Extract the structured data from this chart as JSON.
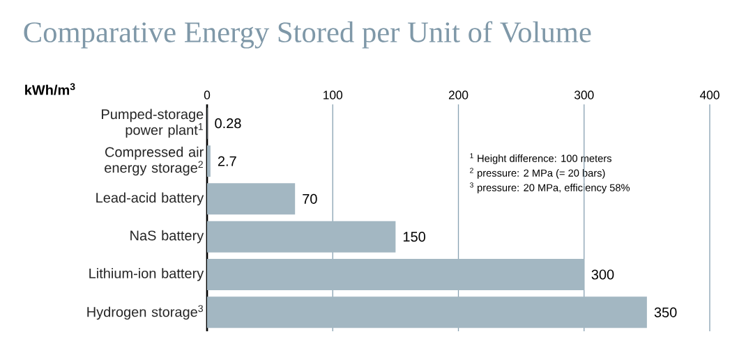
{
  "chart_data": {
    "type": "bar",
    "orientation": "horizontal",
    "title": "Comparative Energy Stored per Unit of Volume",
    "ylabel": "kWh/m$^{3}$",
    "categories": [
      "Pumped-storage power plant$^{1}$",
      "Compressed air energy storage$^{2}$",
      "Lead-acid battery",
      "NaS battery",
      "Lithium-ion battery",
      "Hydrogen storage$^{3}$"
    ],
    "values": [
      0.28,
      2.7,
      70,
      150,
      300,
      350
    ],
    "color": "#a3b7c2",
    "data_labels": true,
    "xlim": [
      0,
      400
    ],
    "xticks": [
      0,
      100,
      200,
      300,
      400
    ],
    "grid": "x",
    "annotations": [
      "$^{1}$ Height difference: 100 meters",
      "$^{2}$ pressure: 2 MPa (= 20 bars)",
      "$^{3}$ pressure: 20 MPa, efficiency 58%"
    ]
  }
}
